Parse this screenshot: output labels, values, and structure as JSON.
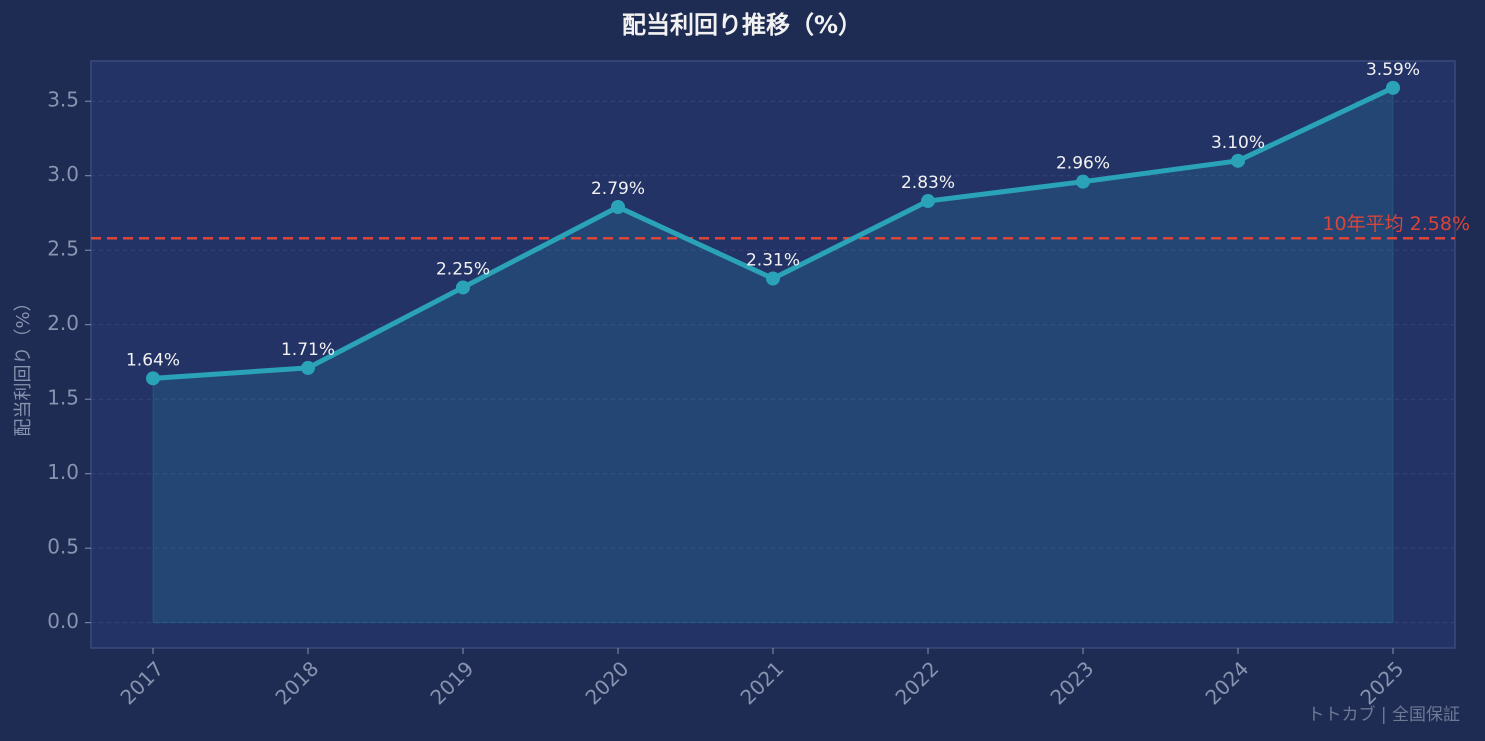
{
  "chart_data": {
    "type": "line",
    "title": "配当利回り推移（%）",
    "y_label": "配当利回り（%）",
    "categories": [
      "2017",
      "2018",
      "2019",
      "2020",
      "2021",
      "2022",
      "2023",
      "2024",
      "2025"
    ],
    "values": [
      1.64,
      1.71,
      2.25,
      2.79,
      2.31,
      2.83,
      2.96,
      3.1,
      3.59
    ],
    "value_labels": [
      "1.64%",
      "1.71%",
      "2.25%",
      "2.79%",
      "2.31%",
      "2.83%",
      "2.96%",
      "3.10%",
      "3.59%"
    ],
    "color": "#2aa3b8",
    "ylim": [
      -0.17,
      3.77
    ],
    "yticks": [
      {
        "value": 0,
        "label": "0.0"
      },
      0.5,
      {
        "value": 1,
        "label": "1.0"
      },
      1.5,
      {
        "value": 2,
        "label": "2.0"
      },
      2.5,
      {
        "value": 3,
        "label": "3.0"
      },
      3.5
    ],
    "grid": true,
    "average": {
      "value": 2.58,
      "label": "10年平均 2.58%",
      "color": "#d9453a"
    },
    "watermark": "トトカブ | 全国保証"
  }
}
